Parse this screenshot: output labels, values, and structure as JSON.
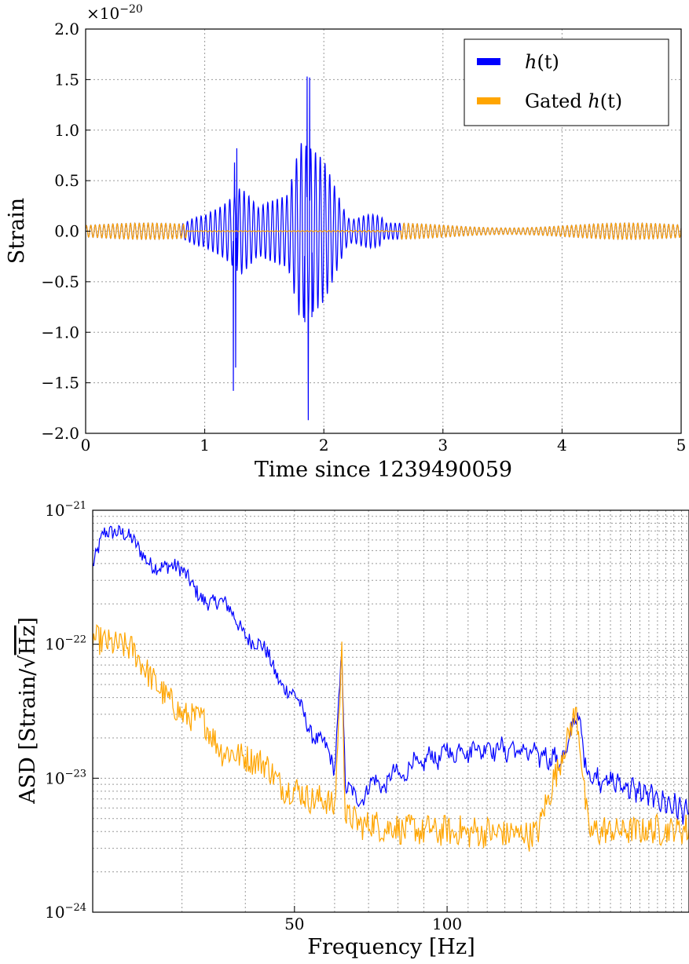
{
  "colors": {
    "raw": "#0000ff",
    "gated": "#ffa500"
  },
  "chart_data": [
    {
      "type": "line",
      "title": "",
      "xlabel": "Time since 1239490059",
      "ylabel": "Strain",
      "y_multiplier": "×10",
      "y_multiplier_exp": "−20",
      "xlim": [
        0,
        5
      ],
      "ylim": [
        -2e-20,
        2e-20
      ],
      "grid": true,
      "legend_position": "top-right",
      "x_ticks": [
        "0",
        "1",
        "2",
        "3",
        "4",
        "5"
      ],
      "y_ticks": [
        "2.0",
        "1.5",
        "1.0",
        "0.5",
        "0.0",
        "−0.5",
        "−1.0",
        "−1.5",
        "−2.0"
      ],
      "legend": [
        {
          "name": "h(t)",
          "name_base": "h",
          "name_arg": "(t)",
          "color": "#0000ff"
        },
        {
          "name": "Gated h(t)",
          "name_base": "Gated ",
          "name_italic": "h",
          "name_arg": "(t)",
          "color": "#ffa500"
        }
      ],
      "series": [
        {
          "name": "h(t)",
          "color": "#0000ff",
          "peaks": [
            {
              "t": 1.24,
              "min": -1.58e-20
            },
            {
              "t": 1.27,
              "max": 8.2e-21
            },
            {
              "t": 1.25,
              "max": 6.8e-21
            },
            {
              "t": 1.26,
              "min": -1.35e-20
            },
            {
              "t": 1.86,
              "max": 1.53e-20
            },
            {
              "t": 1.88,
              "max": 1.52e-20
            },
            {
              "t": 1.87,
              "min": -1.87e-20
            },
            {
              "t": 1.84,
              "min": -9e-21
            },
            {
              "t": 1.9,
              "min": -8.5e-21
            }
          ],
          "envelope": [
            [
              0.8,
              4e-22
            ],
            [
              1.0,
              1e-21
            ],
            [
              1.2,
              3.5e-21
            ],
            [
              1.3,
              4.5e-21
            ],
            [
              1.45,
              2e-21
            ],
            [
              1.7,
              4e-21
            ],
            [
              1.8,
              9e-21
            ],
            [
              2.0,
              6.5e-21
            ],
            [
              2.2,
              2e-21
            ],
            [
              2.5,
              5e-22
            ]
          ]
        },
        {
          "name": "Gated h(t)",
          "color": "#ffa500",
          "amplitude": 8e-22,
          "gate_window": [
            0.85,
            2.65
          ]
        }
      ]
    },
    {
      "type": "line",
      "title": "",
      "xlabel": "Frequency [Hz]",
      "ylabel": "ASD [Strain/√Hz]",
      "ylabel_prefix": "ASD [Strain/",
      "ylabel_sqrt": "√",
      "ylabel_unit": "Hz",
      "ylabel_suffix": "]",
      "xscale": "log",
      "yscale": "log",
      "xlim": [
        20,
        300
      ],
      "ylim": [
        1e-24,
        1e-21
      ],
      "grid": true,
      "x_ticks": [
        {
          "value": 50,
          "label": "50"
        },
        {
          "value": 100,
          "label": "100"
        }
      ],
      "y_ticks": [
        {
          "value": 1e-21,
          "base": "10",
          "exp": "−21"
        },
        {
          "value": 1e-22,
          "base": "10",
          "exp": "−22"
        },
        {
          "value": 1e-23,
          "base": "10",
          "exp": "−23"
        },
        {
          "value": 1e-24,
          "base": "10",
          "exp": "−24"
        }
      ],
      "series": [
        {
          "name": "h(t)",
          "color": "#0000ff",
          "points": [
            [
              20,
              4.2e-22
            ],
            [
              21,
              6.8e-22
            ],
            [
              22,
              6.2e-22
            ],
            [
              24,
              5.8e-22
            ],
            [
              26,
              4.4e-22
            ],
            [
              28,
              3.8e-22
            ],
            [
              30,
              3.2e-22
            ],
            [
              33,
              2.4e-22
            ],
            [
              36,
              1.9e-22
            ],
            [
              40,
              1.3e-22
            ],
            [
              44,
              8e-23
            ],
            [
              48,
              5e-23
            ],
            [
              52,
              3e-23
            ],
            [
              56,
              1.9e-23
            ],
            [
              60,
              1.2e-23
            ],
            [
              62,
              1e-22
            ],
            [
              63,
              8e-24
            ],
            [
              66,
              7e-24
            ],
            [
              70,
              8.5e-24
            ],
            [
              78,
              1e-23
            ],
            [
              88,
              1.3e-23
            ],
            [
              100,
              1.55e-23
            ],
            [
              120,
              1.7e-23
            ],
            [
              140,
              1.6e-23
            ],
            [
              170,
              1.35e-23
            ],
            [
              180,
              3.2e-23
            ],
            [
              190,
              1.05e-23
            ],
            [
              220,
              9e-24
            ],
            [
              260,
              7e-24
            ],
            [
              300,
              5.5e-24
            ]
          ]
        },
        {
          "name": "Gated h(t)",
          "color": "#ffa500",
          "points": [
            [
              20,
              1.15e-22
            ],
            [
              22,
              9.5e-23
            ],
            [
              24,
              9e-23
            ],
            [
              26,
              6e-23
            ],
            [
              28,
              4e-23
            ],
            [
              30,
              2.8e-23
            ],
            [
              33,
              2.9e-23
            ],
            [
              36,
              1.5e-23
            ],
            [
              40,
              1.5e-23
            ],
            [
              44,
              1.2e-23
            ],
            [
              48,
              8.5e-24
            ],
            [
              52,
              7.5e-24
            ],
            [
              56,
              7e-24
            ],
            [
              60,
              6e-24
            ],
            [
              62,
              9e-23
            ],
            [
              63,
              5e-24
            ],
            [
              70,
              4.5e-24
            ],
            [
              80,
              4.2e-24
            ],
            [
              100,
              4e-24
            ],
            [
              150,
              3.8e-24
            ],
            [
              180,
              3.2e-23
            ],
            [
              190,
              4e-24
            ],
            [
              250,
              4.1e-24
            ],
            [
              300,
              4.2e-24
            ]
          ]
        }
      ]
    }
  ]
}
